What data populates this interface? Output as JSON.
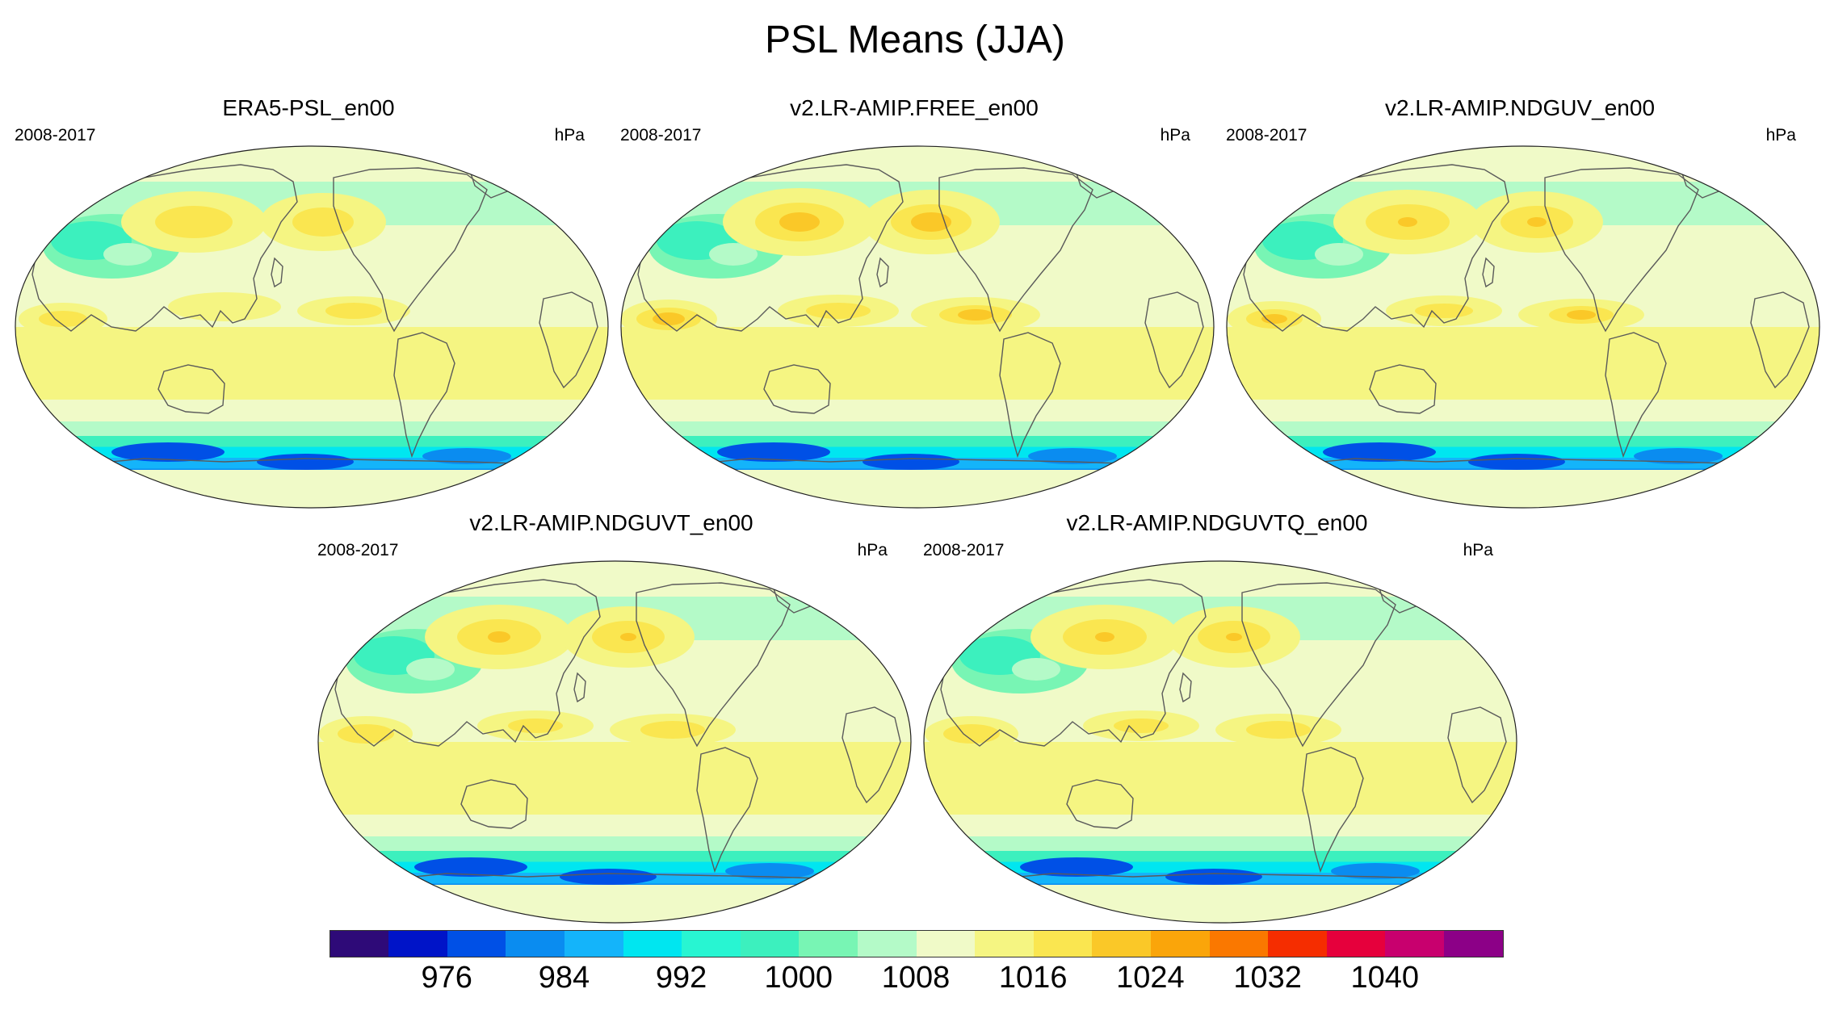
{
  "figure": {
    "title": "PSL Means (JJA)"
  },
  "panels": [
    {
      "title": "ERA5-PSL_en00",
      "period": "2008-2017",
      "units": "hPa",
      "variant": 0
    },
    {
      "title": "v2.LR-AMIP.FREE_en00",
      "period": "2008-2017",
      "units": "hPa",
      "variant": 1
    },
    {
      "title": "v2.LR-AMIP.NDGUV_en00",
      "period": "2008-2017",
      "units": "hPa",
      "variant": 2
    },
    {
      "title": "v2.LR-AMIP.NDGUVT_en00",
      "period": "2008-2017",
      "units": "hPa",
      "variant": 3
    },
    {
      "title": "v2.LR-AMIP.NDGUVTQ_en00",
      "period": "2008-2017",
      "units": "hPa",
      "variant": 4
    }
  ],
  "colorbar": {
    "colors": [
      "#2e0a78",
      "#0014c8",
      "#0050e6",
      "#0a8cf0",
      "#14b4fa",
      "#00e6f0",
      "#28f5d2",
      "#3cf0be",
      "#78f5b4",
      "#b4fac8",
      "#f0fac8",
      "#f5f582",
      "#fae650",
      "#fac828",
      "#faa50a",
      "#fa7800",
      "#f52d00",
      "#e6003c",
      "#c8006e",
      "#8c0087"
    ],
    "tick_labels": [
      "976",
      "984",
      "992",
      "1000",
      "1008",
      "1016",
      "1024",
      "1032",
      "1040"
    ]
  }
}
